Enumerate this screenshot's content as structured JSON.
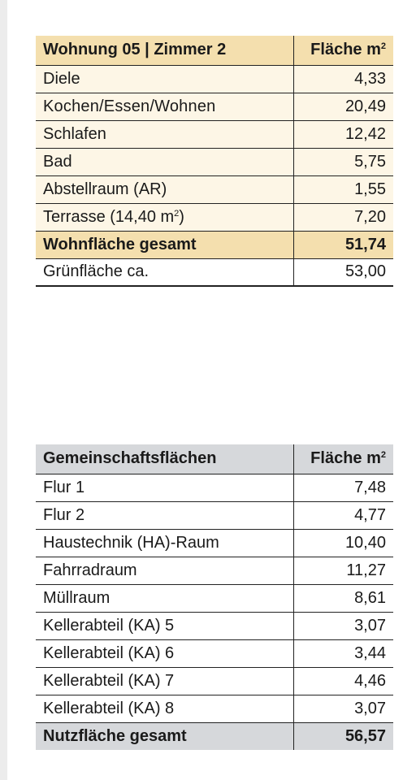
{
  "apartment_table": {
    "header": {
      "room": "Wohnung 05 | Zimmer 2",
      "area_label": "Fläche m",
      "area_unit_sup": "2"
    },
    "rows": [
      {
        "room": "Diele",
        "area": "4,33"
      },
      {
        "room": "Kochen/Essen/Wohnen",
        "area": "20,49"
      },
      {
        "room": "Schlafen",
        "area": "12,42"
      },
      {
        "room": "Bad",
        "area": "5,75"
      },
      {
        "room": "Abstellraum (AR)",
        "area": "1,55"
      },
      {
        "room_prefix": "Terrasse (14,40 m",
        "room_sup": "2",
        "room_suffix": ")",
        "area": "7,20"
      }
    ],
    "total": {
      "label": "Wohnfläche gesamt",
      "area": "51,74"
    },
    "extra": {
      "label": "Grünfläche ca.",
      "area": "53,00"
    }
  },
  "common_table": {
    "header": {
      "room": "Gemeinschaftsflächen",
      "area_label": "Fläche m",
      "area_unit_sup": "2"
    },
    "rows": [
      {
        "room": "Flur 1",
        "area": "7,48"
      },
      {
        "room": "Flur 2",
        "area": "4,77"
      },
      {
        "room": "Haustechnik (HA)-Raum",
        "area": "10,40"
      },
      {
        "room": "Fahrradraum",
        "area": "11,27"
      },
      {
        "room": "Müllraum",
        "area": "8,61"
      },
      {
        "room": "Kellerabteil (KA) 5",
        "area": "3,07"
      },
      {
        "room": "Kellerabteil (KA) 6",
        "area": "3,44"
      },
      {
        "room": "Kellerabteil (KA) 7",
        "area": "4,46"
      },
      {
        "room": "Kellerabteil (KA) 8",
        "area": "3,07"
      }
    ],
    "total": {
      "label": "Nutzfläche gesamt",
      "area": "56,57"
    }
  },
  "colors": {
    "apartment_header_bg": "#f4dfae",
    "apartment_row_bg": "#fdf6e6",
    "common_header_bg": "#d6d8db"
  }
}
